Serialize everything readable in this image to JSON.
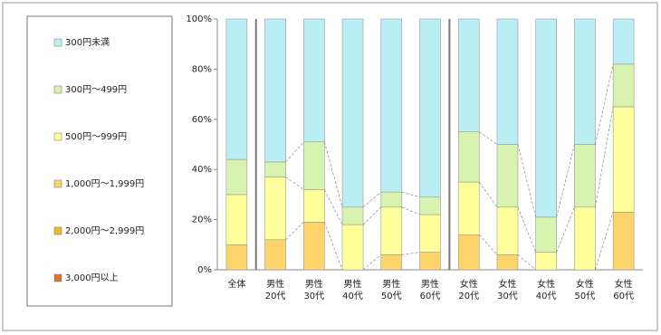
{
  "chart_data": {
    "type": "stacked_bar_100",
    "categories": [
      "全体",
      "男性\n20代",
      "男性\n30代",
      "男性\n40代",
      "男性\n50代",
      "男性\n60代",
      "女性\n20代",
      "女性\n30代",
      "女性\n40代",
      "女性\n50代",
      "女性\n60代"
    ],
    "series": [
      {
        "name": "3,000円以上",
        "color": "#e2702c",
        "values": [
          0,
          0,
          0,
          0,
          0,
          0,
          0,
          0,
          0,
          0,
          0
        ]
      },
      {
        "name": "2,000円～2,999円",
        "color": "#e9bb24",
        "values": [
          0,
          0,
          0,
          0,
          0,
          0,
          0,
          0,
          0,
          0,
          0
        ]
      },
      {
        "name": "1,000円～1,999円",
        "color": "#fdd46a",
        "values": [
          10,
          12,
          19,
          0,
          6,
          7,
          14,
          6,
          0,
          0,
          23
        ]
      },
      {
        "name": "500円～999円",
        "color": "#ffff9c",
        "values": [
          20,
          25,
          13,
          18,
          19,
          15,
          21,
          19,
          7,
          25,
          42
        ]
      },
      {
        "name": "300円～499円",
        "color": "#d8f2b0",
        "values": [
          14,
          6,
          19,
          7,
          6,
          7,
          20,
          25,
          14,
          25,
          17
        ]
      },
      {
        "name": "300円未満",
        "color": "#b9eef5",
        "values": [
          56,
          57,
          49,
          75,
          69,
          71,
          45,
          50,
          79,
          50,
          18
        ]
      }
    ],
    "ylim": [
      0,
      100
    ],
    "yticks": [
      {
        "value": 0,
        "label": "0%"
      },
      {
        "value": 20,
        "label": "20%"
      },
      {
        "value": 40,
        "label": "40%"
      },
      {
        "value": 60,
        "label": "60%"
      },
      {
        "value": 80,
        "label": "80%"
      },
      {
        "value": 100,
        "label": "100%"
      }
    ],
    "grid": false,
    "legend": "left"
  }
}
